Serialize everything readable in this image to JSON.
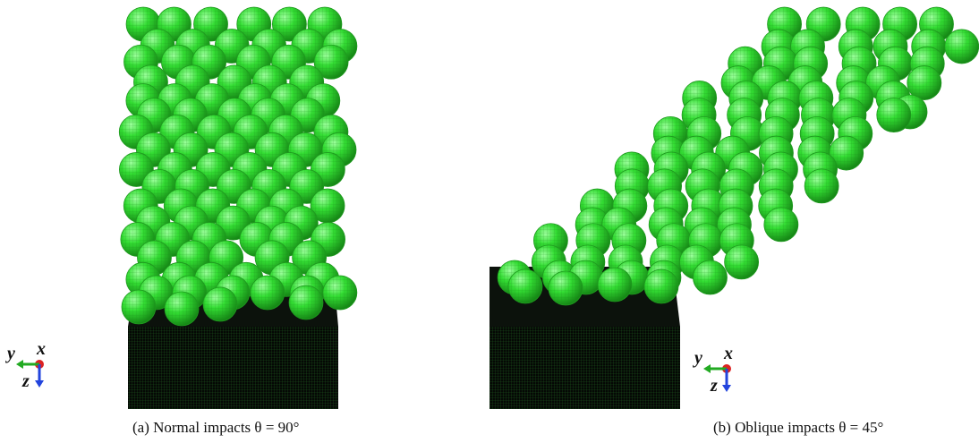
{
  "figure": {
    "panels": [
      {
        "caption": "(a) Normal impacts θ = 90°",
        "particle_color": "#33dd33",
        "target_color": "#0a140a",
        "axis_triad": {
          "labels": [
            "y",
            "x",
            "z"
          ],
          "colors": {
            "y": "#22aa22",
            "x": "#dd2222",
            "z": "#2244dd"
          }
        }
      },
      {
        "caption": "(b) Oblique impacts θ = 45°",
        "particle_color": "#33dd33",
        "target_color": "#0a140a",
        "axis_triad": {
          "labels": [
            "y",
            "x",
            "z"
          ],
          "colors": {
            "y": "#22aa22",
            "x": "#dd2222",
            "z": "#2244dd"
          }
        }
      }
    ]
  }
}
